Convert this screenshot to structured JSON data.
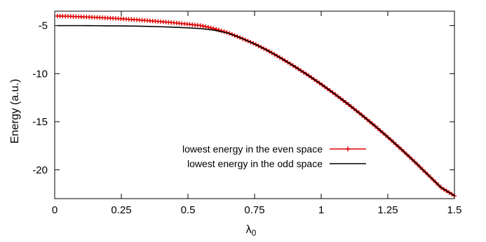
{
  "chart_data": {
    "type": "line",
    "title": "",
    "xlabel": "λ",
    "xlabel_subscript": "0",
    "ylabel": "Energy (a.u.)",
    "xlim": [
      0,
      1.5
    ],
    "ylim": [
      -23,
      -3.5
    ],
    "x_ticks": [
      0,
      0.25,
      0.5,
      0.75,
      1,
      1.25,
      1.5
    ],
    "x_tick_labels": [
      "0",
      "0.25",
      "0.5",
      "0.75",
      "1",
      "1.25",
      "1.5"
    ],
    "y_ticks": [
      -5,
      -10,
      -15,
      -20
    ],
    "y_tick_labels": [
      "-5",
      "-10",
      "-15",
      "-20"
    ],
    "grid": false,
    "legend_position": "lower-middle",
    "series": [
      {
        "name": "lowest energy in the even space",
        "color": "#dd0000",
        "marker": "plus",
        "x": [
          0.01,
          0.05,
          0.1,
          0.15,
          0.2,
          0.25,
          0.3,
          0.35,
          0.4,
          0.45,
          0.5,
          0.55,
          0.6,
          0.65,
          0.7,
          0.75,
          0.8,
          0.85,
          0.9,
          0.95,
          1.0,
          1.05,
          1.1,
          1.15,
          1.2,
          1.25,
          1.3,
          1.35,
          1.4,
          1.45,
          1.5
        ],
        "y": [
          -4.0,
          -4.03,
          -4.08,
          -4.14,
          -4.21,
          -4.29,
          -4.38,
          -4.48,
          -4.59,
          -4.71,
          -4.85,
          -5.0,
          -5.33,
          -5.75,
          -6.3,
          -6.9,
          -7.6,
          -8.4,
          -9.25,
          -10.15,
          -11.1,
          -12.1,
          -13.15,
          -14.25,
          -15.4,
          -16.6,
          -17.85,
          -19.15,
          -20.5,
          -21.85,
          -22.7
        ]
      },
      {
        "name": "lowest energy in the odd space",
        "color": "#000000",
        "marker": "none",
        "x": [
          0.01,
          0.05,
          0.1,
          0.15,
          0.2,
          0.25,
          0.3,
          0.35,
          0.4,
          0.45,
          0.5,
          0.55,
          0.6,
          0.65,
          0.7,
          0.75,
          0.8,
          0.85,
          0.9,
          0.95,
          1.0,
          1.05,
          1.1,
          1.15,
          1.2,
          1.25,
          1.3,
          1.35,
          1.4,
          1.45,
          1.5
        ],
        "y": [
          -5.0,
          -5.0,
          -5.0,
          -5.01,
          -5.02,
          -5.03,
          -5.05,
          -5.08,
          -5.12,
          -5.17,
          -5.23,
          -5.32,
          -5.48,
          -5.78,
          -6.3,
          -6.9,
          -7.6,
          -8.4,
          -9.25,
          -10.15,
          -11.1,
          -12.1,
          -13.15,
          -14.25,
          -15.4,
          -16.6,
          -17.85,
          -19.15,
          -20.5,
          -21.85,
          -22.7
        ]
      }
    ]
  }
}
